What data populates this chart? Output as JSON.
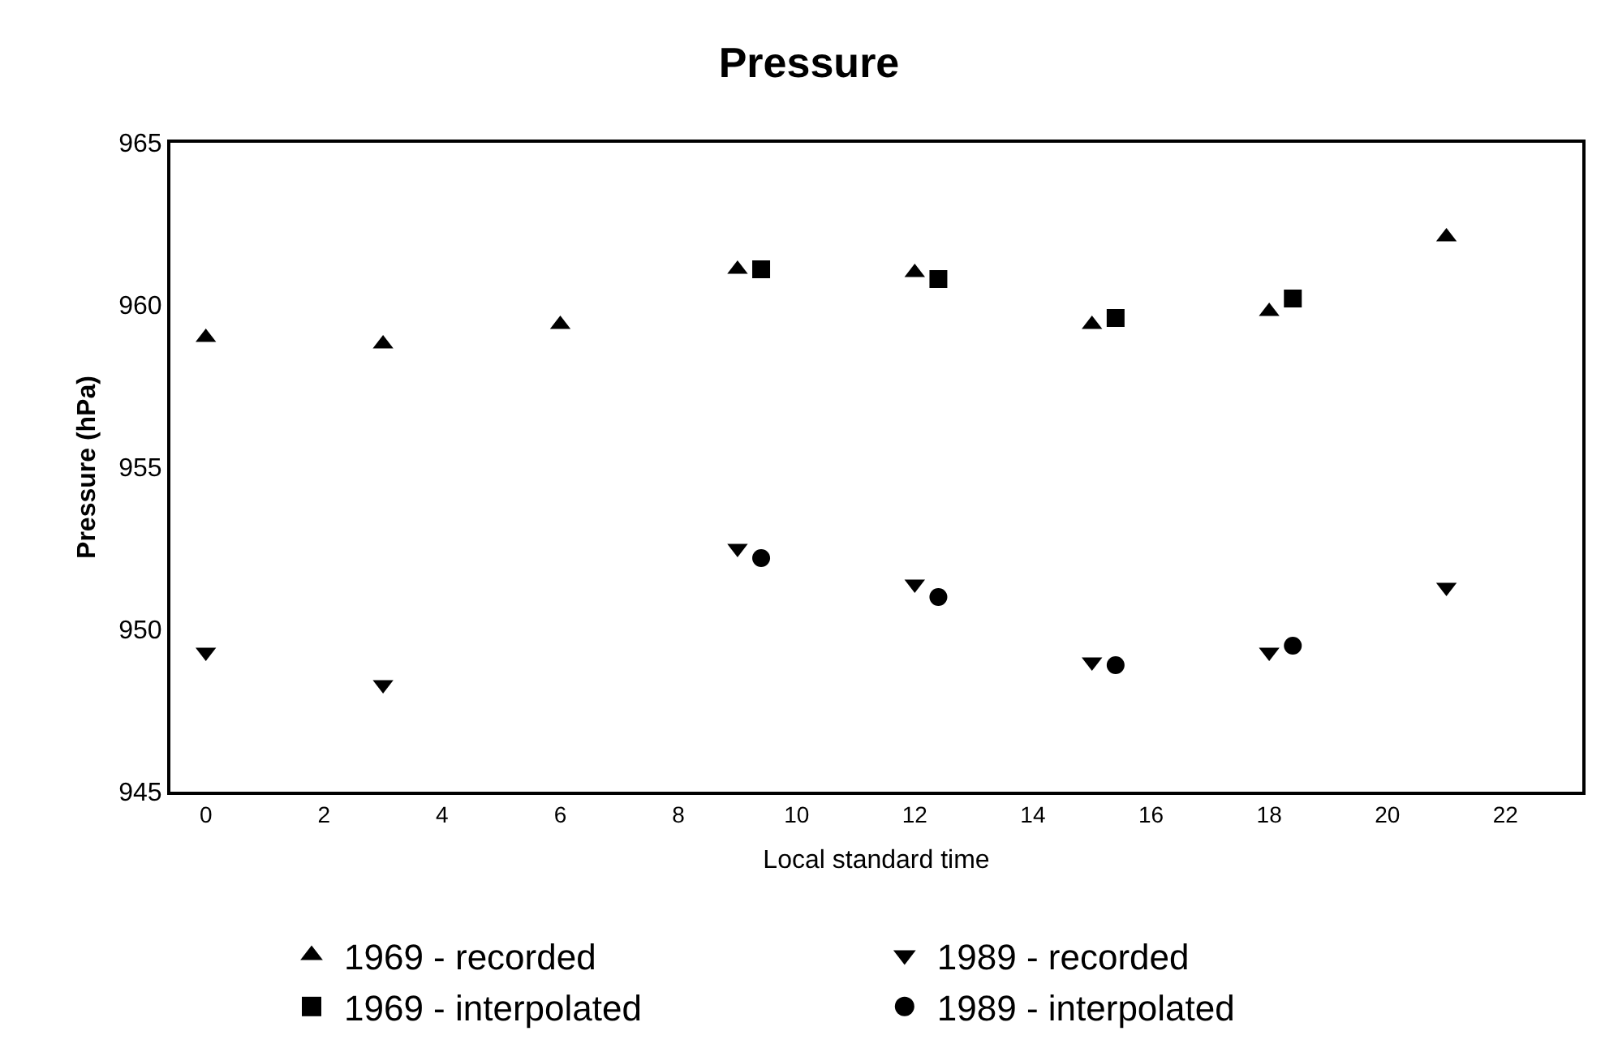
{
  "chart_data": {
    "type": "scatter",
    "title": "Pressure",
    "xlabel": "Local standard time",
    "ylabel": "Pressure (hPa)",
    "xlim": [
      -0.6,
      23.3
    ],
    "xticks": [
      0,
      2,
      4,
      6,
      8,
      10,
      12,
      14,
      16,
      18,
      20,
      22
    ],
    "ylim": [
      945,
      965
    ],
    "yticks": [
      945,
      950,
      955,
      960,
      965
    ],
    "grid": false,
    "legend": "bottom",
    "series": [
      {
        "name": "1969 - recorded",
        "color": "#000000",
        "marker": "triangle",
        "x": [
          0,
          3,
          6,
          9,
          12,
          15,
          18,
          21
        ],
        "values": [
          959.0,
          958.8,
          959.4,
          961.1,
          961.0,
          959.4,
          959.8,
          962.1
        ]
      },
      {
        "name": "1989 - recorded",
        "color": "#000000",
        "marker": "triangle-down",
        "x": [
          0,
          3,
          9,
          12,
          15,
          18,
          21
        ],
        "values": [
          949.3,
          948.3,
          952.5,
          951.4,
          949.0,
          949.3,
          951.3
        ]
      },
      {
        "name": "1969 - interpolated",
        "color": "#000000",
        "marker": "square",
        "x": [
          9.4,
          12.4,
          15.4,
          18.4
        ],
        "values": [
          961.1,
          960.8,
          959.6,
          960.2
        ]
      },
      {
        "name": "1989 - interpolated",
        "color": "#000000",
        "marker": "circle",
        "x": [
          9.4,
          12.4,
          15.4,
          18.4
        ],
        "values": [
          952.2,
          951.0,
          948.9,
          949.5
        ]
      }
    ]
  }
}
